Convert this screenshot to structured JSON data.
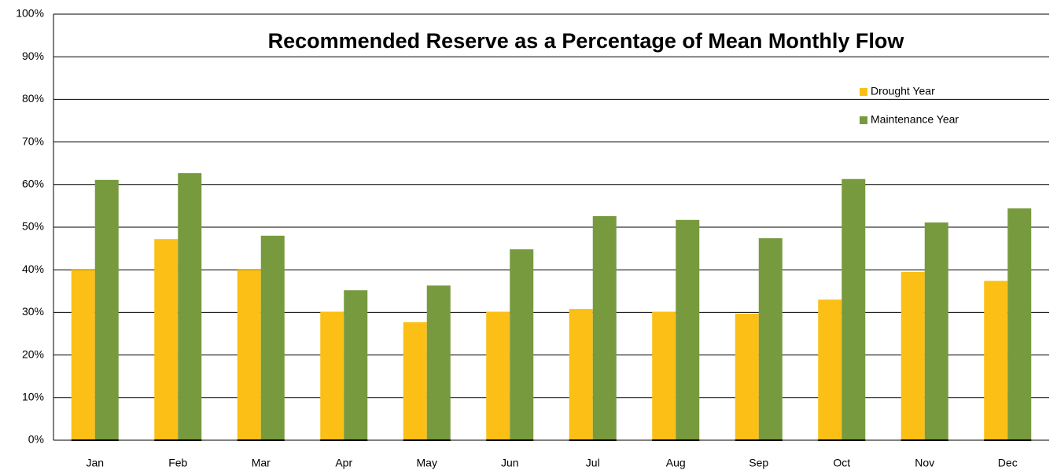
{
  "chart_data": {
    "type": "bar",
    "title": "Recommended Reserve as a Percentage of Mean Monthly Flow",
    "categories": [
      "Jan",
      "Feb",
      "Mar",
      "Apr",
      "May",
      "Jun",
      "Jul",
      "Aug",
      "Sep",
      "Oct",
      "Nov",
      "Dec"
    ],
    "series": [
      {
        "name": "Drought Year",
        "color": "#fbbf15",
        "values": [
          40,
          47.2,
          40,
          30.1,
          27.7,
          30.1,
          30.8,
          30.1,
          29.7,
          33,
          39.5,
          37.4
        ]
      },
      {
        "name": "Maintenance Year",
        "color": "#779a3e",
        "values": [
          61.1,
          62.7,
          48,
          35.2,
          36.3,
          44.8,
          52.6,
          51.7,
          47.4,
          61.3,
          51.1,
          54.4
        ]
      }
    ],
    "ylim": [
      0,
      100
    ],
    "yticks": [
      {
        "value": 0,
        "label": "0%"
      },
      {
        "value": 10,
        "label": "10%"
      },
      {
        "value": 20,
        "label": "20%"
      },
      {
        "value": 30,
        "label": "30%"
      },
      {
        "value": 40,
        "label": "40%"
      },
      {
        "value": 50,
        "label": "50%"
      },
      {
        "value": 60,
        "label": "60%"
      },
      {
        "value": 70,
        "label": "70%"
      },
      {
        "value": 80,
        "label": "80%"
      },
      {
        "value": 90,
        "label": "90%"
      },
      {
        "value": 100,
        "label": "100%"
      }
    ],
    "grid": true,
    "legend": "top-right"
  }
}
